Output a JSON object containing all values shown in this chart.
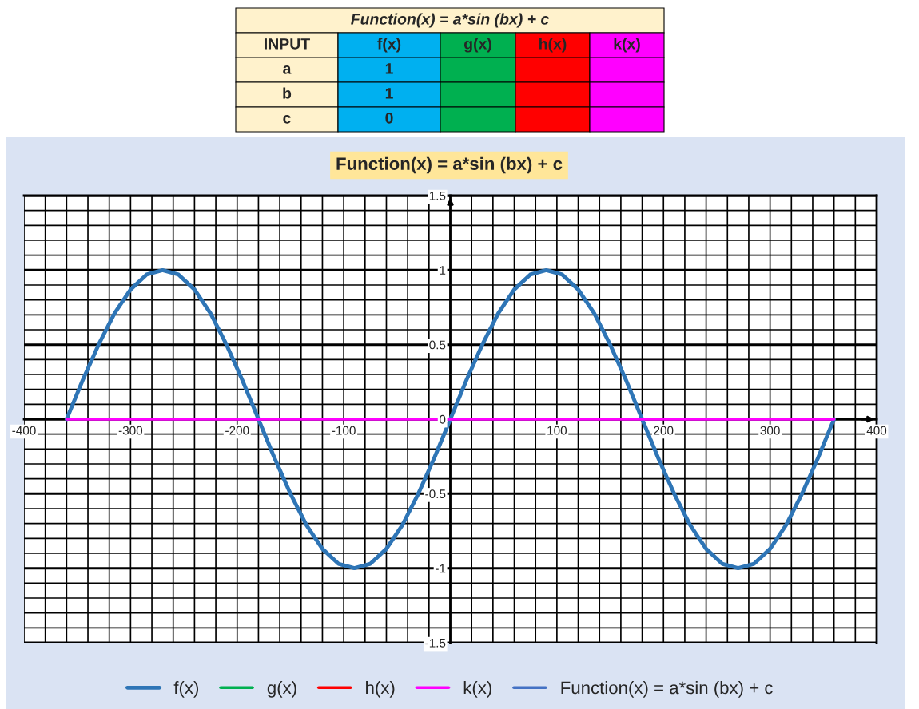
{
  "chart_data": {
    "type": "line",
    "title": "Function(x) = a*sin (bx) + c",
    "annotations": [
      "Function(x) = a*sin (bx) + c",
      "INPUT",
      "f(x)",
      "g(x)",
      "h(x)",
      "k(x)",
      "a",
      "1",
      "b",
      "1",
      "c",
      "0"
    ],
    "x": [
      -360,
      -345,
      -330,
      -315,
      -300,
      -285,
      -270,
      -255,
      -240,
      -225,
      -210,
      -195,
      -180,
      -165,
      -150,
      -135,
      -120,
      -105,
      -90,
      -75,
      -60,
      -45,
      -30,
      -15,
      0,
      15,
      30,
      45,
      60,
      75,
      90,
      105,
      120,
      135,
      150,
      165,
      180,
      195,
      210,
      225,
      240,
      255,
      270,
      285,
      300,
      315,
      330,
      345,
      360
    ],
    "series": [
      {
        "name": "f(x)",
        "color": "#2e75b6",
        "values": [
          0,
          0.26,
          0.5,
          0.71,
          0.87,
          0.97,
          1,
          0.97,
          0.87,
          0.71,
          0.5,
          0.26,
          0,
          -0.26,
          -0.5,
          -0.71,
          -0.87,
          -0.97,
          -1,
          -0.97,
          -0.87,
          -0.71,
          -0.5,
          -0.26,
          0,
          0.26,
          0.5,
          0.71,
          0.87,
          0.97,
          1,
          0.97,
          0.87,
          0.71,
          0.5,
          0.26,
          0,
          -0.26,
          -0.5,
          -0.71,
          -0.87,
          -0.97,
          -1,
          -0.97,
          -0.87,
          -0.71,
          -0.5,
          -0.26,
          0
        ]
      },
      {
        "name": "g(x)",
        "color": "#00b050",
        "values": [
          null,
          null,
          null,
          null,
          null,
          null,
          null,
          null,
          null,
          null,
          null,
          null,
          null,
          null,
          null,
          null,
          null,
          null,
          null,
          null,
          null,
          null,
          null,
          null,
          null,
          null,
          null,
          null,
          null,
          null,
          null,
          null,
          null,
          null,
          null,
          null,
          null,
          null,
          null,
          null,
          null,
          null,
          null,
          null,
          null,
          null,
          null,
          null,
          null
        ]
      },
      {
        "name": "h(x)",
        "color": "#ff0000",
        "values": [
          null,
          null,
          null,
          null,
          null,
          null,
          null,
          null,
          null,
          null,
          null,
          null,
          null,
          null,
          null,
          null,
          null,
          null,
          null,
          null,
          null,
          null,
          null,
          null,
          null,
          null,
          null,
          null,
          null,
          null,
          null,
          null,
          null,
          null,
          null,
          null,
          null,
          null,
          null,
          null,
          null,
          null,
          null,
          null,
          null,
          null,
          null,
          null,
          null
        ]
      },
      {
        "name": "k(x)",
        "color": "#ff00ff",
        "values": [
          0,
          0,
          0,
          0,
          0,
          0,
          0,
          0,
          0,
          0,
          0,
          0,
          0,
          0,
          0,
          0,
          0,
          0,
          0,
          0,
          0,
          0,
          0,
          0,
          0,
          0,
          0,
          0,
          0,
          0,
          0,
          0,
          0,
          0,
          0,
          0,
          0,
          0,
          0,
          0,
          0,
          0,
          0,
          0,
          0,
          0,
          0,
          0,
          0
        ]
      },
      {
        "name": "Function(x) = a*sin (bx) + c",
        "color": "#4472c4",
        "values": [
          null,
          null,
          null,
          null,
          null,
          null,
          null,
          null,
          null,
          null,
          null,
          null,
          null,
          null,
          null,
          null,
          null,
          null,
          null,
          null,
          null,
          null,
          null,
          null,
          null,
          null,
          null,
          null,
          null,
          null,
          null,
          null,
          null,
          null,
          null,
          null,
          null,
          null,
          null,
          null,
          null,
          null,
          null,
          null,
          null,
          null,
          null,
          null,
          null
        ]
      }
    ],
    "xlim": [
      -400,
      400
    ],
    "xticks": [
      -400,
      {
        "value": -380,
        "label": null
      },
      {
        "value": -360,
        "label": null
      },
      {
        "value": -340,
        "label": null
      },
      {
        "value": -320,
        "label": null
      },
      -300,
      {
        "value": -280,
        "label": null
      },
      {
        "value": -260,
        "label": null
      },
      {
        "value": -240,
        "label": null
      },
      {
        "value": -220,
        "label": null
      },
      -200,
      {
        "value": -180,
        "label": null
      },
      {
        "value": -160,
        "label": null
      },
      {
        "value": -140,
        "label": null
      },
      {
        "value": -120,
        "label": null
      },
      -100,
      {
        "value": -80,
        "label": null
      },
      {
        "value": -60,
        "label": null
      },
      {
        "value": -40,
        "label": null
      },
      {
        "value": -20,
        "label": null
      },
      {
        "value": 0,
        "label": null
      },
      {
        "value": 20,
        "label": null
      },
      {
        "value": 40,
        "label": null
      },
      {
        "value": 60,
        "label": null
      },
      {
        "value": 80,
        "label": null
      },
      100,
      {
        "value": 120,
        "label": null
      },
      {
        "value": 140,
        "label": null
      },
      {
        "value": 160,
        "label": null
      },
      {
        "value": 180,
        "label": null
      },
      200,
      {
        "value": 220,
        "label": null
      },
      {
        "value": 240,
        "label": null
      },
      {
        "value": 260,
        "label": null
      },
      {
        "value": 280,
        "label": null
      },
      300,
      {
        "value": 320,
        "label": null
      },
      {
        "value": 340,
        "label": null
      },
      {
        "value": 360,
        "label": null
      },
      {
        "value": 380,
        "label": null
      },
      400
    ],
    "ylim": [
      -1.5,
      1.5
    ],
    "yticks": [
      -1.5,
      {
        "value": -1.4,
        "label": null
      },
      {
        "value": -1.3,
        "label": null
      },
      {
        "value": -1.2,
        "label": null
      },
      {
        "value": -1.1,
        "label": null
      },
      -1,
      {
        "value": -0.9,
        "label": null
      },
      {
        "value": -0.8,
        "label": null
      },
      {
        "value": -0.7,
        "label": null
      },
      {
        "value": -0.6,
        "label": null
      },
      -0.5,
      {
        "value": -0.4,
        "label": null
      },
      {
        "value": -0.3,
        "label": null
      },
      {
        "value": -0.2,
        "label": null
      },
      {
        "value": -0.1,
        "label": null
      },
      0,
      {
        "value": 0.1,
        "label": null
      },
      {
        "value": 0.2,
        "label": null
      },
      {
        "value": 0.3,
        "label": null
      },
      {
        "value": 0.4,
        "label": null
      },
      0.5,
      {
        "value": 0.6,
        "label": null
      },
      {
        "value": 0.7,
        "label": null
      },
      {
        "value": 0.8,
        "label": null
      },
      {
        "value": 0.9,
        "label": null
      },
      1,
      {
        "value": 1.1,
        "label": null
      },
      {
        "value": 1.2,
        "label": null
      },
      {
        "value": 1.3,
        "label": null
      },
      {
        "value": 1.4,
        "label": null
      },
      1.5
    ],
    "grid": true,
    "legend": "bottom",
    "marker": "none",
    "line_style": "solid"
  }
}
